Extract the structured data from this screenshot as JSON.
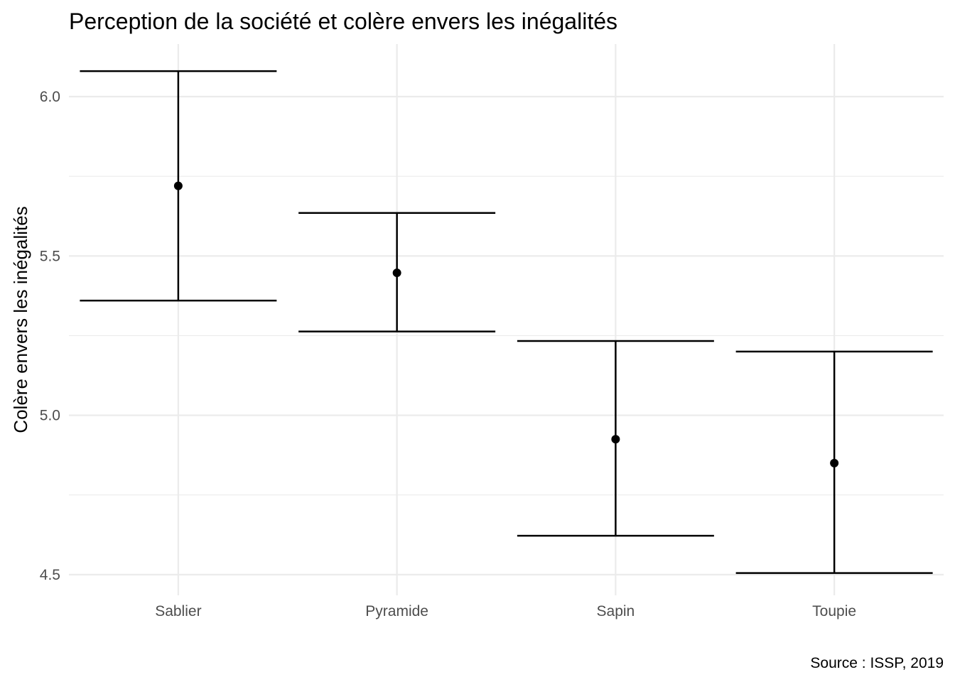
{
  "chart_data": {
    "type": "errorbar",
    "title": "Perception de la société et colère envers les inégalités",
    "xlabel": "",
    "ylabel": "Colère envers les inégalités",
    "caption": "Source : ISSP, 2019",
    "categories": [
      "Sablier",
      "Pyramide",
      "Sapin",
      "Toupie"
    ],
    "mean": [
      5.72,
      5.447,
      4.925,
      4.85
    ],
    "lower": [
      5.36,
      5.263,
      4.622,
      4.505
    ],
    "upper": [
      6.08,
      5.635,
      5.233,
      5.2
    ],
    "ylim": [
      4.435,
      6.165
    ],
    "yticks": [
      4.5,
      5.0,
      5.5,
      6.0
    ],
    "ytick_labels": [
      "4.5",
      "5.0",
      "5.5",
      "6.0"
    ],
    "grid": true,
    "legend": "none",
    "colors": {
      "marks": "#000000",
      "grid": "#ebebeb",
      "tick_text": "#4d4d4d"
    }
  }
}
